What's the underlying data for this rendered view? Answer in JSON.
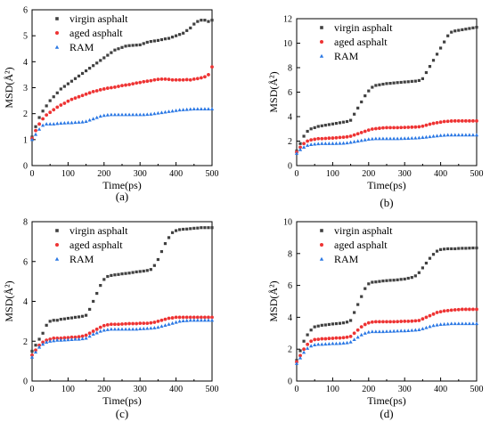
{
  "chart_data": [
    {
      "type": "scatter",
      "panel_label": "(a)",
      "xlabel": "Time(ps)",
      "ylabel": "MSD(Å²)",
      "xlim": [
        0,
        500
      ],
      "ylim": [
        0,
        6
      ],
      "xticks": [
        0,
        100,
        200,
        300,
        400,
        500
      ],
      "yticks": [
        0,
        1,
        2,
        3,
        4,
        5,
        6
      ],
      "legend_position": "top-left",
      "x": [
        0,
        10,
        20,
        30,
        40,
        50,
        60,
        70,
        80,
        90,
        100,
        110,
        120,
        130,
        140,
        150,
        160,
        170,
        180,
        190,
        200,
        210,
        220,
        230,
        240,
        250,
        260,
        270,
        280,
        290,
        300,
        310,
        320,
        330,
        340,
        350,
        360,
        370,
        380,
        390,
        400,
        410,
        420,
        430,
        440,
        450,
        460,
        470,
        480,
        490,
        500
      ],
      "series": [
        {
          "name": "virgin asphalt",
          "color": "#404040",
          "marker": "square",
          "values": [
            1.1,
            1.5,
            1.85,
            2.1,
            2.3,
            2.5,
            2.65,
            2.8,
            2.95,
            3.05,
            3.15,
            3.25,
            3.35,
            3.45,
            3.55,
            3.65,
            3.75,
            3.85,
            3.95,
            4.05,
            4.15,
            4.25,
            4.35,
            4.45,
            4.5,
            4.55,
            4.6,
            4.62,
            4.63,
            4.64,
            4.65,
            4.7,
            4.75,
            4.78,
            4.8,
            4.82,
            4.85,
            4.88,
            4.9,
            4.95,
            5.0,
            5.05,
            5.1,
            5.2,
            5.3,
            5.45,
            5.55,
            5.6,
            5.6,
            5.55,
            5.6
          ]
        },
        {
          "name": "aged asphalt",
          "color": "#ee3333",
          "marker": "circle",
          "values": [
            1.05,
            1.35,
            1.6,
            1.8,
            1.95,
            2.05,
            2.15,
            2.25,
            2.33,
            2.4,
            2.48,
            2.55,
            2.6,
            2.65,
            2.7,
            2.75,
            2.8,
            2.85,
            2.88,
            2.92,
            2.95,
            2.98,
            3.0,
            3.02,
            3.05,
            3.08,
            3.1,
            3.12,
            3.15,
            3.18,
            3.2,
            3.23,
            3.25,
            3.27,
            3.3,
            3.32,
            3.33,
            3.33,
            3.32,
            3.3,
            3.3,
            3.3,
            3.3,
            3.31,
            3.3,
            3.33,
            3.35,
            3.38,
            3.42,
            3.5,
            3.8
          ]
        },
        {
          "name": "RAM",
          "color": "#2b78e4",
          "marker": "triangle",
          "values": [
            1.0,
            1.2,
            1.4,
            1.55,
            1.6,
            1.6,
            1.6,
            1.62,
            1.63,
            1.64,
            1.65,
            1.65,
            1.66,
            1.67,
            1.68,
            1.7,
            1.75,
            1.8,
            1.85,
            1.9,
            1.93,
            1.95,
            1.96,
            1.96,
            1.96,
            1.96,
            1.96,
            1.96,
            1.96,
            1.96,
            1.96,
            1.96,
            1.97,
            1.98,
            2.0,
            2.02,
            2.04,
            2.06,
            2.08,
            2.1,
            2.12,
            2.14,
            2.15,
            2.16,
            2.17,
            2.18,
            2.18,
            2.18,
            2.18,
            2.18,
            2.18
          ]
        }
      ]
    },
    {
      "type": "scatter",
      "panel_label": "(b)",
      "xlabel": "Time(ps)",
      "ylabel": "MSD(Å²)",
      "xlim": [
        0,
        500
      ],
      "ylim": [
        0,
        12
      ],
      "xticks": [
        0,
        100,
        200,
        300,
        400,
        500
      ],
      "yticks": [
        0,
        2,
        4,
        6,
        8,
        10,
        12
      ],
      "legend_position": "top-left",
      "x": [
        0,
        10,
        20,
        30,
        40,
        50,
        60,
        70,
        80,
        90,
        100,
        110,
        120,
        130,
        140,
        150,
        160,
        170,
        180,
        190,
        200,
        210,
        220,
        230,
        240,
        250,
        260,
        270,
        280,
        290,
        300,
        310,
        320,
        330,
        340,
        350,
        360,
        370,
        380,
        390,
        400,
        410,
        420,
        430,
        440,
        450,
        460,
        470,
        480,
        490,
        500
      ],
      "series": [
        {
          "name": "virgin asphalt",
          "color": "#404040",
          "marker": "square",
          "values": [
            1.2,
            1.8,
            2.4,
            2.8,
            3.0,
            3.1,
            3.2,
            3.25,
            3.3,
            3.35,
            3.4,
            3.45,
            3.5,
            3.55,
            3.6,
            3.7,
            4.2,
            4.7,
            5.2,
            5.7,
            6.1,
            6.4,
            6.55,
            6.6,
            6.65,
            6.7,
            6.72,
            6.75,
            6.78,
            6.8,
            6.83,
            6.85,
            6.88,
            6.9,
            6.95,
            7.1,
            7.6,
            8.1,
            8.6,
            9.1,
            9.6,
            10.1,
            10.6,
            10.9,
            11.0,
            11.05,
            11.1,
            11.15,
            11.2,
            11.25,
            11.3
          ]
        },
        {
          "name": "aged asphalt",
          "color": "#ee3333",
          "marker": "circle",
          "values": [
            1.1,
            1.5,
            1.8,
            2.0,
            2.1,
            2.15,
            2.2,
            2.2,
            2.22,
            2.24,
            2.25,
            2.27,
            2.3,
            2.32,
            2.35,
            2.4,
            2.5,
            2.6,
            2.7,
            2.8,
            2.9,
            2.98,
            3.02,
            3.05,
            3.08,
            3.1,
            3.1,
            3.1,
            3.1,
            3.11,
            3.12,
            3.13,
            3.14,
            3.15,
            3.17,
            3.22,
            3.3,
            3.38,
            3.45,
            3.5,
            3.55,
            3.6,
            3.62,
            3.64,
            3.65,
            3.65,
            3.65,
            3.65,
            3.65,
            3.65,
            3.65
          ]
        },
        {
          "name": "RAM",
          "color": "#2b78e4",
          "marker": "triangle",
          "values": [
            1.0,
            1.3,
            1.5,
            1.65,
            1.72,
            1.75,
            1.78,
            1.8,
            1.8,
            1.8,
            1.8,
            1.81,
            1.82,
            1.83,
            1.85,
            1.9,
            1.95,
            2.0,
            2.05,
            2.1,
            2.15,
            2.18,
            2.2,
            2.2,
            2.2,
            2.2,
            2.2,
            2.2,
            2.2,
            2.21,
            2.22,
            2.23,
            2.24,
            2.25,
            2.27,
            2.3,
            2.33,
            2.36,
            2.4,
            2.43,
            2.46,
            2.48,
            2.5,
            2.5,
            2.5,
            2.5,
            2.5,
            2.5,
            2.5,
            2.5,
            2.5
          ]
        }
      ]
    },
    {
      "type": "scatter",
      "panel_label": "(c)",
      "xlabel": "Time(ps)",
      "ylabel": "MSD(Å²)",
      "xlim": [
        0,
        500
      ],
      "ylim": [
        0,
        8
      ],
      "xticks": [
        0,
        100,
        200,
        300,
        400,
        500
      ],
      "yticks": [
        0,
        2,
        4,
        6,
        8
      ],
      "legend_position": "top-left",
      "x": [
        0,
        10,
        20,
        30,
        40,
        50,
        60,
        70,
        80,
        90,
        100,
        110,
        120,
        130,
        140,
        150,
        160,
        170,
        180,
        190,
        200,
        210,
        220,
        230,
        240,
        250,
        260,
        270,
        280,
        290,
        300,
        310,
        320,
        330,
        340,
        350,
        360,
        370,
        380,
        390,
        400,
        410,
        420,
        430,
        440,
        450,
        460,
        470,
        480,
        490,
        500
      ],
      "series": [
        {
          "name": "virgin asphalt",
          "color": "#404040",
          "marker": "square",
          "values": [
            1.5,
            1.8,
            2.1,
            2.4,
            2.8,
            3.0,
            3.05,
            3.05,
            3.1,
            3.12,
            3.15,
            3.17,
            3.2,
            3.22,
            3.25,
            3.3,
            3.6,
            4.0,
            4.4,
            4.8,
            5.1,
            5.25,
            5.3,
            5.33,
            5.35,
            5.38,
            5.4,
            5.42,
            5.45,
            5.48,
            5.5,
            5.52,
            5.55,
            5.6,
            5.8,
            6.1,
            6.5,
            6.9,
            7.2,
            7.45,
            7.55,
            7.6,
            7.62,
            7.63,
            7.65,
            7.67,
            7.68,
            7.7,
            7.7,
            7.7,
            7.7
          ]
        },
        {
          "name": "aged asphalt",
          "color": "#ee3333",
          "marker": "circle",
          "values": [
            1.3,
            1.55,
            1.8,
            1.95,
            2.05,
            2.1,
            2.15,
            2.15,
            2.15,
            2.17,
            2.18,
            2.2,
            2.2,
            2.22,
            2.25,
            2.3,
            2.4,
            2.5,
            2.6,
            2.7,
            2.78,
            2.82,
            2.85,
            2.85,
            2.85,
            2.86,
            2.87,
            2.88,
            2.88,
            2.88,
            2.9,
            2.9,
            2.9,
            2.92,
            2.95,
            3.0,
            3.05,
            3.1,
            3.15,
            3.17,
            3.2,
            3.2,
            3.2,
            3.2,
            3.2,
            3.2,
            3.2,
            3.2,
            3.2,
            3.2,
            3.2
          ]
        },
        {
          "name": "RAM",
          "color": "#2b78e4",
          "marker": "triangle",
          "values": [
            1.2,
            1.45,
            1.7,
            1.85,
            1.95,
            2.0,
            2.02,
            2.05,
            2.05,
            2.06,
            2.07,
            2.08,
            2.1,
            2.1,
            2.12,
            2.15,
            2.25,
            2.35,
            2.42,
            2.5,
            2.55,
            2.58,
            2.6,
            2.6,
            2.6,
            2.6,
            2.6,
            2.6,
            2.6,
            2.6,
            2.62,
            2.63,
            2.64,
            2.65,
            2.67,
            2.7,
            2.75,
            2.8,
            2.85,
            2.9,
            2.95,
            3.0,
            3.02,
            3.03,
            3.05,
            3.05,
            3.05,
            3.05,
            3.05,
            3.05,
            3.05
          ]
        }
      ]
    },
    {
      "type": "scatter",
      "panel_label": "(d)",
      "xlabel": "Time(ps)",
      "ylabel": "MSD(Å²)",
      "xlim": [
        0,
        500
      ],
      "ylim": [
        0,
        10
      ],
      "xticks": [
        0,
        100,
        200,
        300,
        400,
        500
      ],
      "yticks": [
        0,
        2,
        4,
        6,
        8,
        10
      ],
      "legend_position": "top-left",
      "x": [
        0,
        10,
        20,
        30,
        40,
        50,
        60,
        70,
        80,
        90,
        100,
        110,
        120,
        130,
        140,
        150,
        160,
        170,
        180,
        190,
        200,
        210,
        220,
        230,
        240,
        250,
        260,
        270,
        280,
        290,
        300,
        310,
        320,
        330,
        340,
        350,
        360,
        370,
        380,
        390,
        400,
        410,
        420,
        430,
        440,
        450,
        460,
        470,
        480,
        490,
        500
      ],
      "series": [
        {
          "name": "virgin asphalt",
          "color": "#404040",
          "marker": "square",
          "values": [
            1.3,
            1.9,
            2.5,
            2.9,
            3.2,
            3.4,
            3.45,
            3.5,
            3.52,
            3.55,
            3.58,
            3.6,
            3.62,
            3.65,
            3.7,
            3.8,
            4.3,
            4.8,
            5.3,
            5.8,
            6.1,
            6.2,
            6.22,
            6.25,
            6.28,
            6.3,
            6.32,
            6.33,
            6.35,
            6.38,
            6.4,
            6.45,
            6.5,
            6.6,
            6.8,
            7.1,
            7.4,
            7.7,
            7.95,
            8.15,
            8.25,
            8.28,
            8.3,
            8.3,
            8.3,
            8.32,
            8.33,
            8.33,
            8.34,
            8.35,
            8.35
          ]
        },
        {
          "name": "aged asphalt",
          "color": "#ee3333",
          "marker": "circle",
          "values": [
            1.2,
            1.6,
            2.0,
            2.3,
            2.5,
            2.6,
            2.62,
            2.65,
            2.65,
            2.67,
            2.68,
            2.7,
            2.7,
            2.72,
            2.75,
            2.8,
            3.0,
            3.2,
            3.4,
            3.55,
            3.65,
            3.7,
            3.72,
            3.72,
            3.72,
            3.72,
            3.72,
            3.72,
            3.73,
            3.74,
            3.75,
            3.75,
            3.76,
            3.78,
            3.8,
            3.9,
            4.0,
            4.1,
            4.2,
            4.3,
            4.35,
            4.4,
            4.42,
            4.45,
            4.47,
            4.48,
            4.5,
            4.5,
            4.5,
            4.5,
            4.5
          ]
        },
        {
          "name": "RAM",
          "color": "#2b78e4",
          "marker": "triangle",
          "values": [
            1.1,
            1.45,
            1.8,
            2.05,
            2.2,
            2.27,
            2.3,
            2.3,
            2.32,
            2.33,
            2.35,
            2.35,
            2.36,
            2.38,
            2.4,
            2.45,
            2.6,
            2.75,
            2.9,
            3.0,
            3.07,
            3.1,
            3.1,
            3.1,
            3.1,
            3.11,
            3.12,
            3.13,
            3.14,
            3.15,
            3.15,
            3.16,
            3.18,
            3.2,
            3.22,
            3.28,
            3.35,
            3.42,
            3.48,
            3.52,
            3.55,
            3.57,
            3.58,
            3.6,
            3.6,
            3.6,
            3.6,
            3.6,
            3.6,
            3.6,
            3.6
          ]
        }
      ]
    }
  ]
}
